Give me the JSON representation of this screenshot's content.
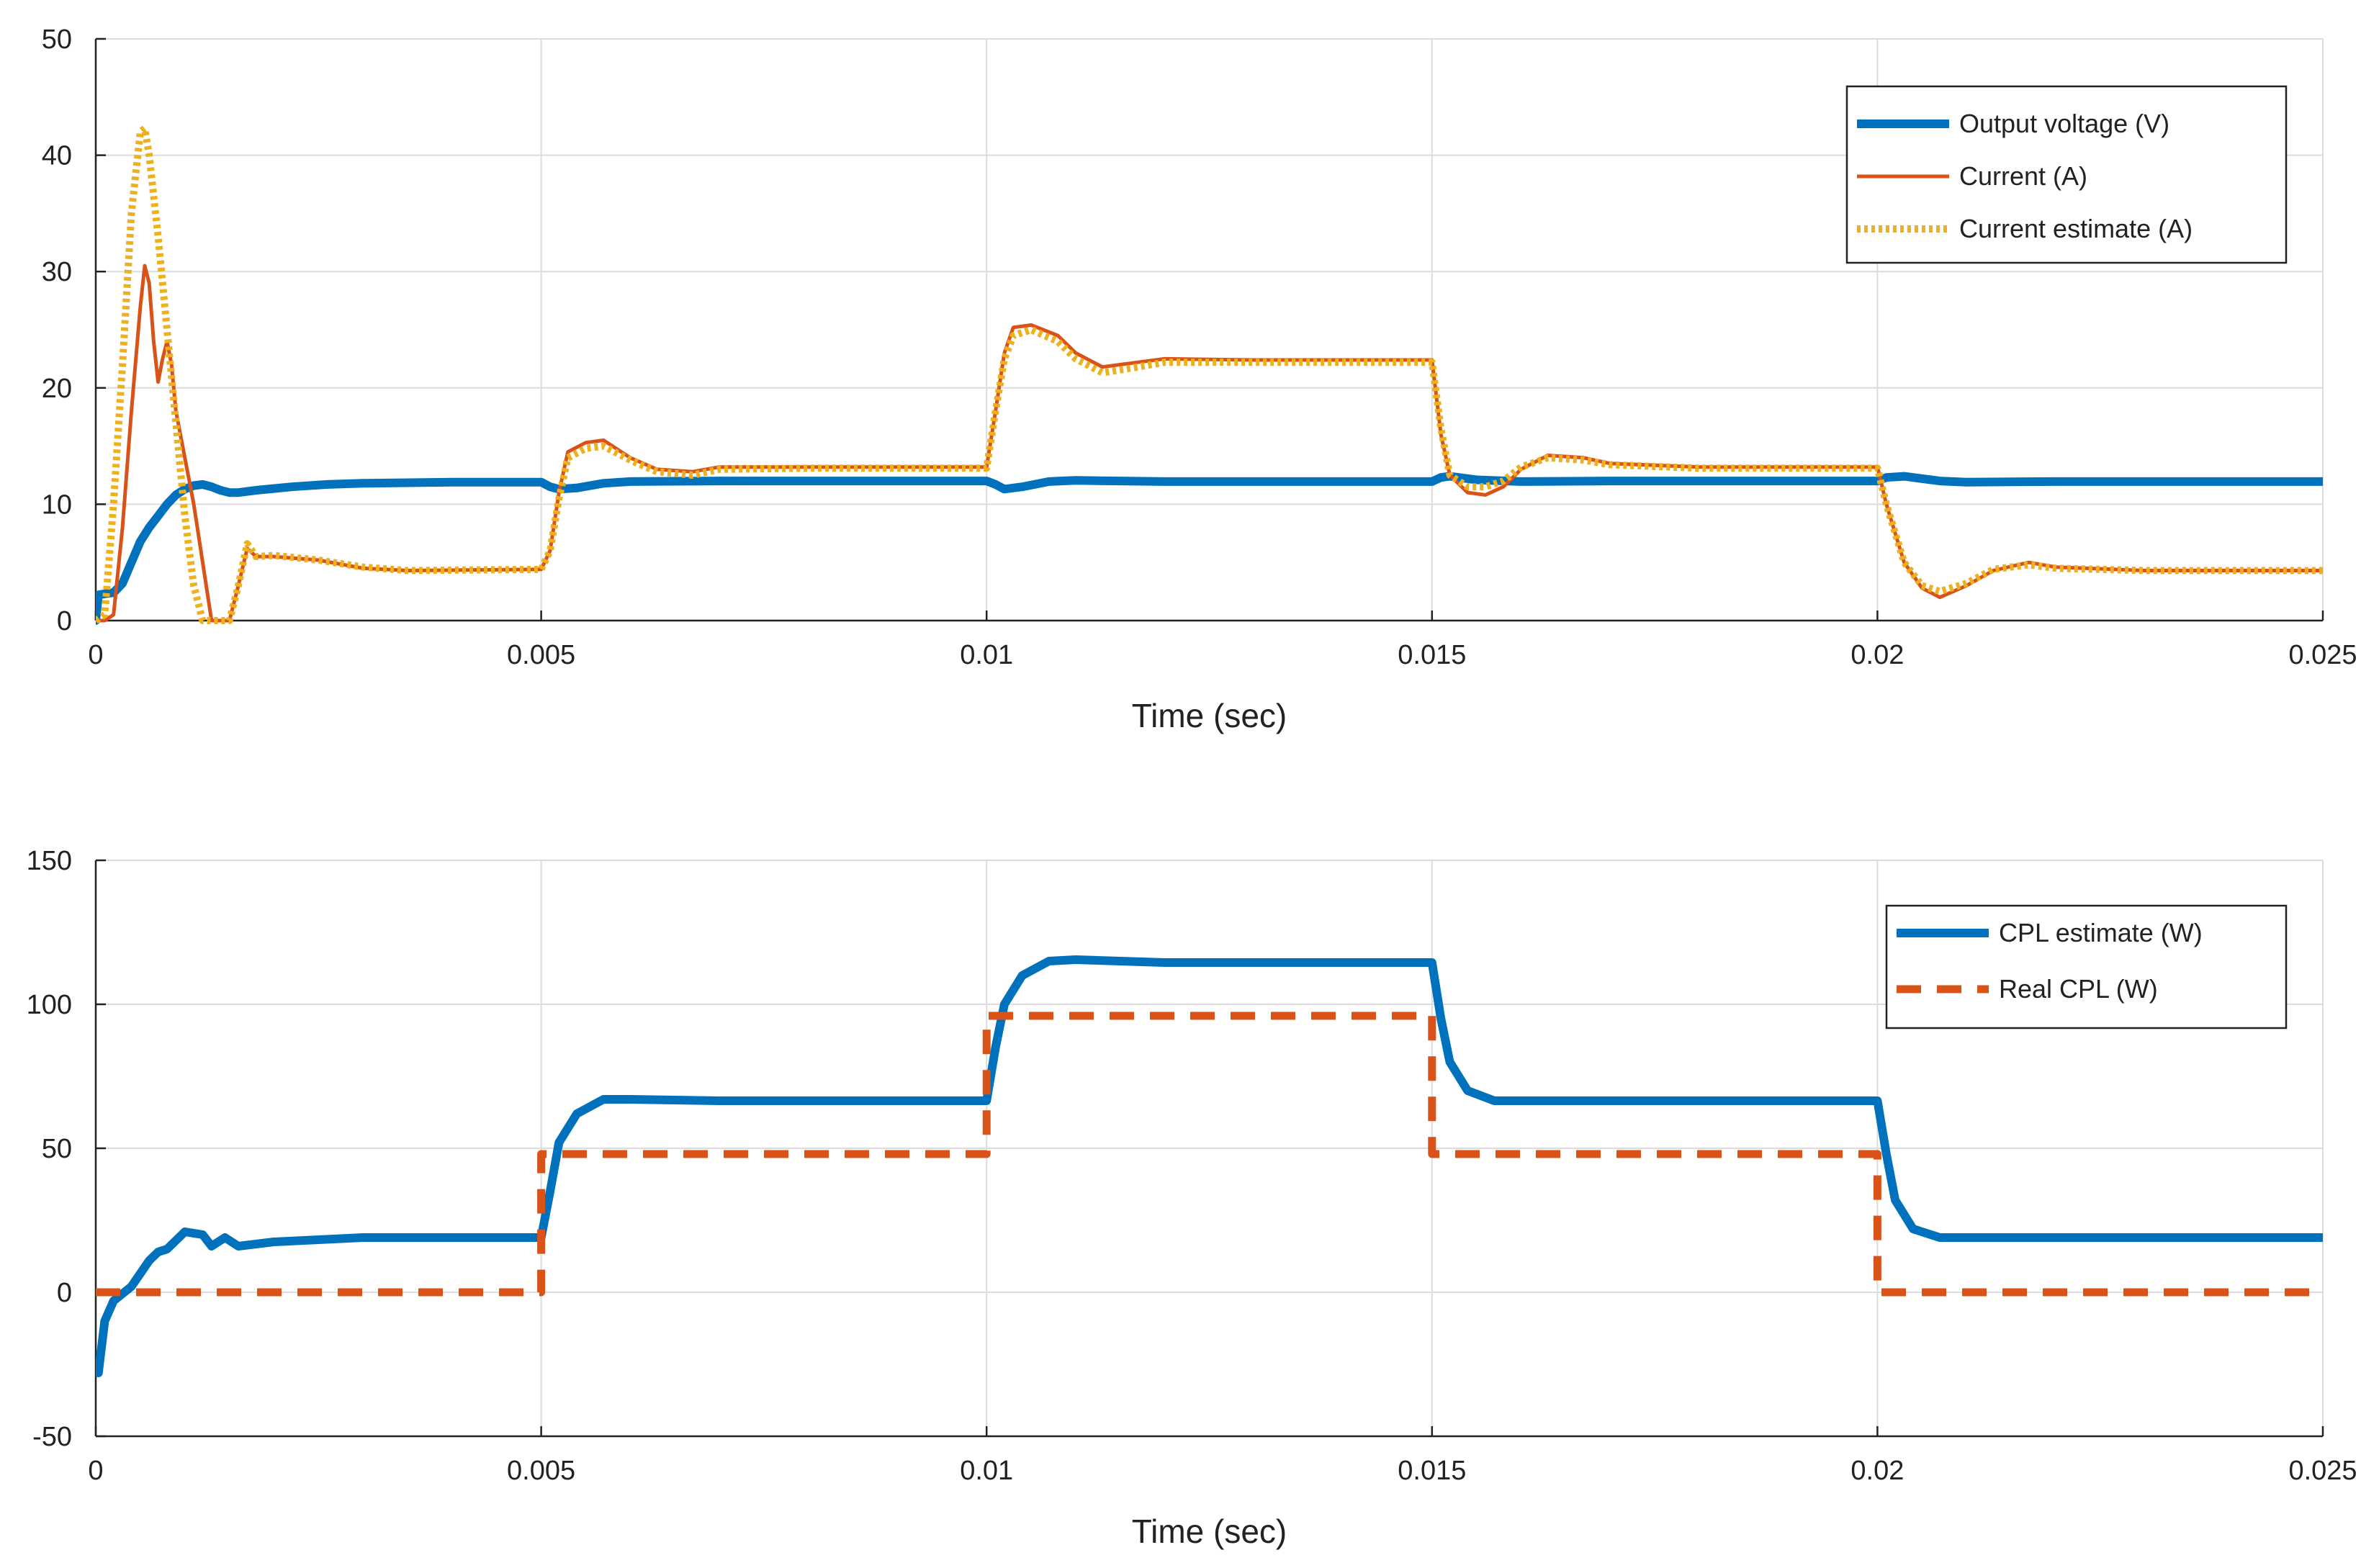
{
  "chart_data": [
    {
      "type": "line",
      "title": "",
      "xlabel": "Time (sec)",
      "ylabel": "",
      "xlim": [
        0,
        0.025
      ],
      "ylim": [
        0,
        50
      ],
      "xticks": [
        0,
        0.005,
        0.01,
        0.015,
        0.02,
        0.025
      ],
      "xtick_labels": [
        "0",
        "0.005",
        "0.01",
        "0.015",
        "0.02",
        "0.025"
      ],
      "yticks": [
        0,
        10,
        20,
        30,
        40,
        50
      ],
      "ytick_labels": [
        "0",
        "10",
        "20",
        "30",
        "40",
        "50"
      ],
      "grid": true,
      "legend_position": "top-right",
      "series": [
        {
          "name": "Output voltage (V)",
          "color": "#0072BD",
          "style": "solid-thick",
          "points": [
            [
              0,
              0
            ],
            [
              3e-05,
              2.2
            ],
            [
              0.0001,
              2.3
            ],
            [
              0.0002,
              2.4
            ],
            [
              0.0003,
              3.2
            ],
            [
              0.0004,
              5
            ],
            [
              0.0005,
              6.8
            ],
            [
              0.0006,
              8
            ],
            [
              0.0007,
              9
            ],
            [
              0.0008,
              10
            ],
            [
              0.0009,
              10.8
            ],
            [
              0.001,
              11.3
            ],
            [
              0.0011,
              11.6
            ],
            [
              0.0012,
              11.7
            ],
            [
              0.0013,
              11.5
            ],
            [
              0.0014,
              11.2
            ],
            [
              0.0015,
              11
            ],
            [
              0.0016,
              11
            ],
            [
              0.0018,
              11.2
            ],
            [
              0.0022,
              11.5
            ],
            [
              0.0026,
              11.7
            ],
            [
              0.003,
              11.8
            ],
            [
              0.004,
              11.9
            ],
            [
              0.005,
              11.9
            ],
            [
              0.0051,
              11.5
            ],
            [
              0.0052,
              11.3
            ],
            [
              0.0054,
              11.4
            ],
            [
              0.0057,
              11.8
            ],
            [
              0.006,
              11.95
            ],
            [
              0.007,
              12
            ],
            [
              0.01,
              12
            ],
            [
              0.0101,
              11.7
            ],
            [
              0.0102,
              11.3
            ],
            [
              0.0104,
              11.5
            ],
            [
              0.0107,
              11.95
            ],
            [
              0.011,
              12.05
            ],
            [
              0.0115,
              12
            ],
            [
              0.012,
              11.95
            ],
            [
              0.015,
              11.95
            ],
            [
              0.0151,
              12.3
            ],
            [
              0.0152,
              12.4
            ],
            [
              0.0155,
              12.1
            ],
            [
              0.016,
              11.95
            ],
            [
              0.017,
              12
            ],
            [
              0.02,
              12
            ],
            [
              0.0201,
              12.3
            ],
            [
              0.0203,
              12.4
            ],
            [
              0.0207,
              12
            ],
            [
              0.021,
              11.9
            ],
            [
              0.022,
              11.95
            ],
            [
              0.025,
              11.95
            ]
          ]
        },
        {
          "name": "Current (A)",
          "color": "#D95319",
          "style": "solid-thin",
          "points": [
            [
              0,
              0
            ],
            [
              0.0001,
              0
            ],
            [
              0.0002,
              0.5
            ],
            [
              0.0003,
              8
            ],
            [
              0.0004,
              18
            ],
            [
              0.0005,
              27
            ],
            [
              0.00055,
              30.5
            ],
            [
              0.0006,
              29
            ],
            [
              0.00065,
              24
            ],
            [
              0.0007,
              20.5
            ],
            [
              0.00075,
              22.5
            ],
            [
              0.0008,
              24
            ],
            [
              0.00085,
              22
            ],
            [
              0.0009,
              18
            ],
            [
              0.001,
              14
            ],
            [
              0.0011,
              10
            ],
            [
              0.0012,
              5
            ],
            [
              0.0013,
              0
            ],
            [
              0.0015,
              0
            ],
            [
              0.0016,
              3
            ],
            [
              0.0017,
              6.2
            ],
            [
              0.0018,
              5.5
            ],
            [
              0.002,
              5.5
            ],
            [
              0.0025,
              5.2
            ],
            [
              0.003,
              4.5
            ],
            [
              0.0035,
              4.3
            ],
            [
              0.005,
              4.4
            ],
            [
              0.0051,
              6
            ],
            [
              0.0052,
              11
            ],
            [
              0.0053,
              14.5
            ],
            [
              0.0055,
              15.3
            ],
            [
              0.0057,
              15.5
            ],
            [
              0.006,
              14
            ],
            [
              0.0063,
              13
            ],
            [
              0.0067,
              12.8
            ],
            [
              0.007,
              13.2
            ],
            [
              0.008,
              13.2
            ],
            [
              0.01,
              13.2
            ],
            [
              0.0101,
              18
            ],
            [
              0.0102,
              23
            ],
            [
              0.0103,
              25.2
            ],
            [
              0.0105,
              25.4
            ],
            [
              0.0108,
              24.5
            ],
            [
              0.011,
              23
            ],
            [
              0.0113,
              21.8
            ],
            [
              0.0117,
              22.2
            ],
            [
              0.012,
              22.5
            ],
            [
              0.013,
              22.4
            ],
            [
              0.015,
              22.4
            ],
            [
              0.0151,
              16
            ],
            [
              0.0152,
              12.5
            ],
            [
              0.0154,
              11
            ],
            [
              0.0156,
              10.8
            ],
            [
              0.0158,
              11.5
            ],
            [
              0.016,
              13
            ],
            [
              0.0163,
              14.2
            ],
            [
              0.0167,
              14
            ],
            [
              0.017,
              13.5
            ],
            [
              0.018,
              13.2
            ],
            [
              0.02,
              13.2
            ],
            [
              0.0201,
              10
            ],
            [
              0.0203,
              5
            ],
            [
              0.0205,
              2.8
            ],
            [
              0.0207,
              2
            ],
            [
              0.021,
              3
            ],
            [
              0.0213,
              4.3
            ],
            [
              0.0217,
              5
            ],
            [
              0.022,
              4.6
            ],
            [
              0.023,
              4.3
            ],
            [
              0.025,
              4.3
            ]
          ]
        },
        {
          "name": "Current estimate (A)",
          "color": "#EDB120",
          "style": "dotted",
          "points": [
            [
              0,
              0
            ],
            [
              0.0001,
              0.5
            ],
            [
              0.0002,
              10
            ],
            [
              0.0003,
              22
            ],
            [
              0.0004,
              35
            ],
            [
              0.0005,
              42
            ],
            [
              0.00055,
              42.3
            ],
            [
              0.0006,
              40
            ],
            [
              0.0007,
              33
            ],
            [
              0.0008,
              25
            ],
            [
              0.0009,
              17
            ],
            [
              0.001,
              9
            ],
            [
              0.0011,
              3
            ],
            [
              0.0012,
              0
            ],
            [
              0.0015,
              0
            ],
            [
              0.0016,
              3
            ],
            [
              0.0017,
              6.6
            ],
            [
              0.0018,
              5.5
            ],
            [
              0.002,
              5.6
            ],
            [
              0.0025,
              5.2
            ],
            [
              0.003,
              4.6
            ],
            [
              0.0035,
              4.3
            ],
            [
              0.005,
              4.4
            ],
            [
              0.0051,
              6
            ],
            [
              0.0052,
              10.5
            ],
            [
              0.0053,
              14
            ],
            [
              0.0055,
              14.8
            ],
            [
              0.0057,
              15
            ],
            [
              0.006,
              13.8
            ],
            [
              0.0063,
              12.8
            ],
            [
              0.0067,
              12.5
            ],
            [
              0.007,
              13
            ],
            [
              0.008,
              13.1
            ],
            [
              0.01,
              13.1
            ],
            [
              0.0101,
              18
            ],
            [
              0.0102,
              22.5
            ],
            [
              0.0103,
              24.5
            ],
            [
              0.0105,
              25
            ],
            [
              0.0108,
              24
            ],
            [
              0.011,
              22.5
            ],
            [
              0.0113,
              21.3
            ],
            [
              0.0117,
              21.8
            ],
            [
              0.012,
              22.2
            ],
            [
              0.013,
              22.2
            ],
            [
              0.015,
              22.2
            ],
            [
              0.0151,
              16.5
            ],
            [
              0.0152,
              12.5
            ],
            [
              0.0154,
              11.5
            ],
            [
              0.0156,
              11.5
            ],
            [
              0.0158,
              12
            ],
            [
              0.016,
              13.2
            ],
            [
              0.0163,
              14
            ],
            [
              0.0167,
              13.8
            ],
            [
              0.017,
              13.4
            ],
            [
              0.018,
              13.1
            ],
            [
              0.02,
              13.1
            ],
            [
              0.0201,
              10
            ],
            [
              0.0203,
              5
            ],
            [
              0.0205,
              3
            ],
            [
              0.0207,
              2.5
            ],
            [
              0.021,
              3.2
            ],
            [
              0.0213,
              4.4
            ],
            [
              0.0217,
              4.8
            ],
            [
              0.022,
              4.5
            ],
            [
              0.023,
              4.3
            ],
            [
              0.025,
              4.3
            ]
          ]
        }
      ]
    },
    {
      "type": "line",
      "title": "",
      "xlabel": "Time (sec)",
      "ylabel": "",
      "xlim": [
        0,
        0.025
      ],
      "ylim": [
        -50,
        150
      ],
      "xticks": [
        0,
        0.005,
        0.01,
        0.015,
        0.02,
        0.025
      ],
      "xtick_labels": [
        "0",
        "0.005",
        "0.01",
        "0.015",
        "0.02",
        "0.025"
      ],
      "yticks": [
        -50,
        0,
        50,
        100,
        150
      ],
      "ytick_labels": [
        "-50",
        "0",
        "50",
        "100",
        "150"
      ],
      "grid": true,
      "legend_position": "top-right",
      "series": [
        {
          "name": "CPL estimate (W)",
          "color": "#0072BD",
          "style": "solid-thick",
          "points": [
            [
              0,
              -27
            ],
            [
              3e-05,
              -28
            ],
            [
              0.0001,
              -10
            ],
            [
              0.0002,
              -3
            ],
            [
              0.0004,
              2
            ],
            [
              0.0006,
              11
            ],
            [
              0.0007,
              14
            ],
            [
              0.0008,
              15
            ],
            [
              0.001,
              21
            ],
            [
              0.0012,
              20
            ],
            [
              0.0013,
              16
            ],
            [
              0.00145,
              19
            ],
            [
              0.0016,
              16
            ],
            [
              0.002,
              17.5
            ],
            [
              0.003,
              19
            ],
            [
              0.005,
              19
            ],
            [
              0.0051,
              35
            ],
            [
              0.0052,
              52
            ],
            [
              0.0054,
              62
            ],
            [
              0.0057,
              67
            ],
            [
              0.006,
              67
            ],
            [
              0.007,
              66.5
            ],
            [
              0.01,
              66.5
            ],
            [
              0.0101,
              85
            ],
            [
              0.0102,
              100
            ],
            [
              0.0104,
              110
            ],
            [
              0.0107,
              115
            ],
            [
              0.011,
              115.5
            ],
            [
              0.012,
              114.5
            ],
            [
              0.015,
              114.5
            ],
            [
              0.0151,
              95
            ],
            [
              0.0152,
              80
            ],
            [
              0.0154,
              70
            ],
            [
              0.0157,
              66.5
            ],
            [
              0.016,
              66.5
            ],
            [
              0.017,
              66.5
            ],
            [
              0.02,
              66.5
            ],
            [
              0.0201,
              48
            ],
            [
              0.0202,
              32
            ],
            [
              0.0204,
              22
            ],
            [
              0.0207,
              19
            ],
            [
              0.021,
              19
            ],
            [
              0.025,
              19
            ]
          ]
        },
        {
          "name": "Real CPL (W)",
          "color": "#D95319",
          "style": "dashed",
          "points": [
            [
              0,
              0
            ],
            [
              0.005,
              0
            ],
            [
              0.005,
              48
            ],
            [
              0.01,
              48
            ],
            [
              0.01,
              96
            ],
            [
              0.015,
              96
            ],
            [
              0.015,
              48
            ],
            [
              0.02,
              48
            ],
            [
              0.02,
              0
            ],
            [
              0.025,
              0
            ]
          ]
        }
      ]
    }
  ]
}
